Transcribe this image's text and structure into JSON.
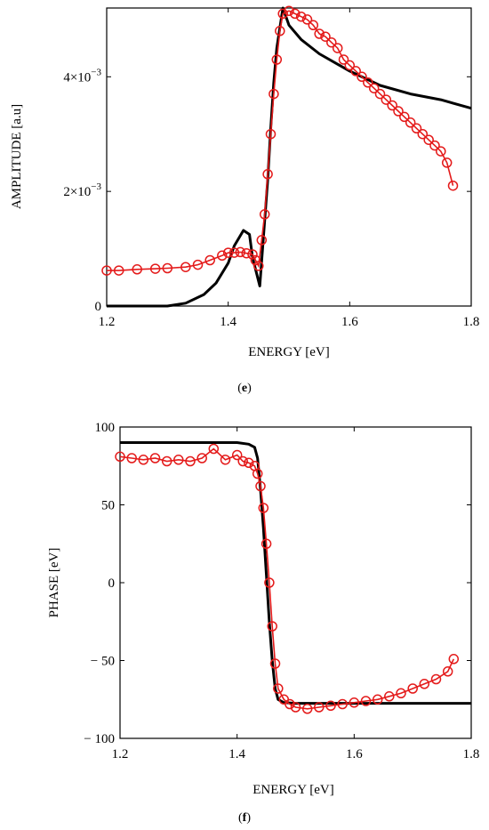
{
  "chart_data": [
    {
      "type": "line",
      "panel": "(e)",
      "panel_prefix": "(",
      "panel_letter": "e",
      "panel_suffix": ")",
      "xlabel": "ENERGY [eV]",
      "ylabel": "AMPLITUDE [a.u]",
      "xlim": [
        1.2,
        1.8
      ],
      "ylim": [
        0,
        0.0052
      ],
      "x_ticks": [
        "1.2",
        "1.4",
        "1.6",
        "1.8"
      ],
      "x_tick_values": [
        1.2,
        1.4,
        1.6,
        1.8
      ],
      "y_ticks": [
        {
          "value": 0,
          "mantissa": "0",
          "exponent": ""
        },
        {
          "value": 0.002,
          "mantissa": "2×10",
          "exponent": "−3"
        },
        {
          "value": 0.004,
          "mantissa": "4×10",
          "exponent": "−3"
        }
      ],
      "grid": false,
      "series": [
        {
          "style": "black solid line",
          "color": "#000000",
          "x": [
            1.2,
            1.3,
            1.33,
            1.36,
            1.38,
            1.4,
            1.41,
            1.425,
            1.435,
            1.44,
            1.452,
            1.458,
            1.465,
            1.47,
            1.475,
            1.48,
            1.49,
            1.5,
            1.52,
            1.55,
            1.6,
            1.65,
            1.7,
            1.75,
            1.8
          ],
          "y": [
            0.0,
            0.0,
            5e-05,
            0.0002,
            0.0004,
            0.00075,
            0.00105,
            0.00132,
            0.00125,
            0.00085,
            0.00035,
            0.0012,
            0.0022,
            0.0031,
            0.0039,
            0.0045,
            0.0052,
            0.0049,
            0.00465,
            0.0044,
            0.0041,
            0.00385,
            0.0037,
            0.0036,
            0.00345
          ]
        },
        {
          "style": "red line with open circle markers",
          "color": "#e41a1a",
          "x": [
            1.2,
            1.22,
            1.25,
            1.28,
            1.3,
            1.33,
            1.35,
            1.37,
            1.39,
            1.4,
            1.41,
            1.42,
            1.43,
            1.44,
            1.445,
            1.45,
            1.455,
            1.46,
            1.465,
            1.47,
            1.475,
            1.48,
            1.485,
            1.49,
            1.5,
            1.51,
            1.52,
            1.53,
            1.54,
            1.55,
            1.56,
            1.57,
            1.58,
            1.59,
            1.6,
            1.61,
            1.62,
            1.63,
            1.64,
            1.65,
            1.66,
            1.67,
            1.68,
            1.69,
            1.7,
            1.71,
            1.72,
            1.73,
            1.74,
            1.75,
            1.76,
            1.77
          ],
          "y": [
            0.00062,
            0.00062,
            0.00064,
            0.00065,
            0.00066,
            0.00068,
            0.00072,
            0.0008,
            0.00088,
            0.00093,
            0.00093,
            0.00094,
            0.00092,
            0.0009,
            0.0008,
            0.0007,
            0.00115,
            0.0016,
            0.0023,
            0.003,
            0.0037,
            0.0043,
            0.0048,
            0.0051,
            0.00515,
            0.0051,
            0.00505,
            0.005,
            0.0049,
            0.00475,
            0.0047,
            0.0046,
            0.0045,
            0.0043,
            0.0042,
            0.0041,
            0.004,
            0.0039,
            0.0038,
            0.0037,
            0.0036,
            0.0035,
            0.0034,
            0.0033,
            0.0032,
            0.0031,
            0.003,
            0.0029,
            0.0028,
            0.0027,
            0.0025,
            0.0021
          ]
        }
      ]
    },
    {
      "type": "line",
      "panel": "(f)",
      "panel_prefix": "(",
      "panel_letter": "f",
      "panel_suffix": ")",
      "xlabel": "ENERGY [eV]",
      "ylabel": "PHASE [eV]",
      "xlim": [
        1.2,
        1.8
      ],
      "ylim": [
        -100,
        100
      ],
      "x_ticks": [
        "1.2",
        "1.4",
        "1.6",
        "1.8"
      ],
      "x_tick_values": [
        1.2,
        1.4,
        1.6,
        1.8
      ],
      "y_ticks": [
        {
          "value": 100,
          "label": "100"
        },
        {
          "value": 50,
          "label": "50"
        },
        {
          "value": 0,
          "label": "0"
        },
        {
          "value": -50,
          "label": "− 50"
        },
        {
          "value": -100,
          "label": "− 100"
        }
      ],
      "grid": false,
      "series": [
        {
          "style": "black solid line",
          "color": "#000000",
          "x": [
            1.2,
            1.4,
            1.42,
            1.43,
            1.435,
            1.44,
            1.445,
            1.45,
            1.455,
            1.46,
            1.465,
            1.47,
            1.48,
            1.5,
            1.8
          ],
          "y": [
            90,
            90,
            89,
            87,
            80,
            60,
            35,
            5,
            -25,
            -50,
            -68,
            -75,
            -77,
            -77.5,
            -77.5
          ]
        },
        {
          "style": "red line with open circle markers",
          "color": "#e41a1a",
          "x": [
            1.2,
            1.22,
            1.24,
            1.26,
            1.28,
            1.3,
            1.32,
            1.34,
            1.36,
            1.38,
            1.4,
            1.41,
            1.42,
            1.43,
            1.435,
            1.44,
            1.445,
            1.45,
            1.455,
            1.46,
            1.465,
            1.47,
            1.48,
            1.49,
            1.5,
            1.52,
            1.54,
            1.56,
            1.58,
            1.6,
            1.62,
            1.64,
            1.66,
            1.68,
            1.7,
            1.72,
            1.74,
            1.76,
            1.77
          ],
          "y": [
            81,
            80,
            79,
            80,
            78,
            79,
            78,
            80,
            86,
            79,
            82,
            78,
            77,
            75,
            70,
            62,
            48,
            25,
            0,
            -28,
            -52,
            -68,
            -75,
            -78,
            -80,
            -81,
            -80,
            -79,
            -78,
            -77,
            -76,
            -75,
            -73,
            -71,
            -68,
            -65,
            -62,
            -57,
            -49
          ]
        }
      ]
    }
  ]
}
